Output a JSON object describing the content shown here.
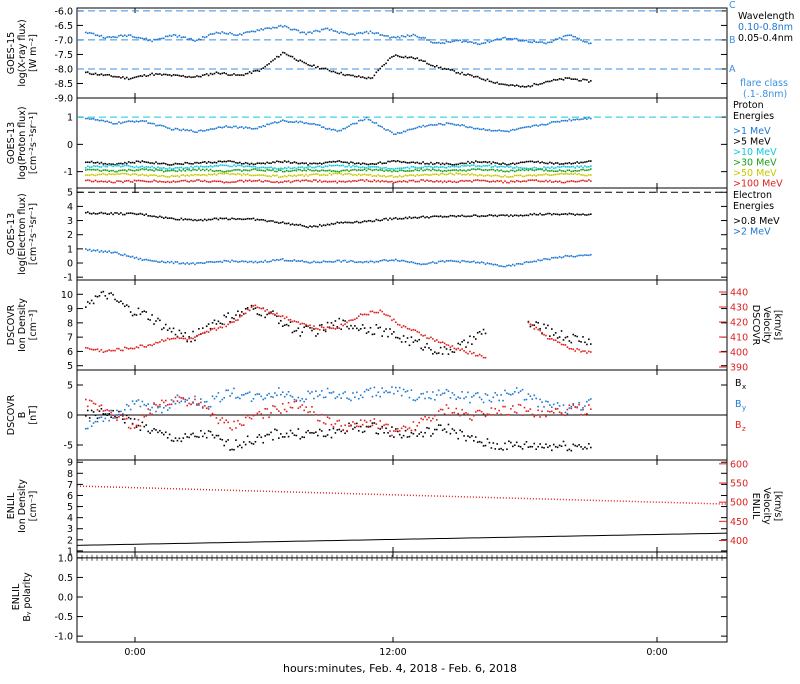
{
  "footer": {
    "xaxis_label": "hours:minutes, Feb.  4, 2018 - Feb.  6, 2018"
  },
  "xticks": [
    "0:00",
    "12:00",
    "0:00"
  ],
  "colors": {
    "black": "#000000",
    "blue": "#1e78d2",
    "cyan": "#10c8e0",
    "green": "#18a018",
    "orange": "#e89a10",
    "yellow": "#c8c800",
    "red": "#e02020",
    "grid_blue": "#3a8fe0"
  },
  "chart_data": [
    {
      "id": "xray",
      "type": "line",
      "ylabel": [
        "GOES-15",
        "log(X-ray flux)",
        "[W m⁻²]"
      ],
      "ylim": [
        -9.0,
        -5.9
      ],
      "yticks": [
        "-6.0",
        "-6.5",
        "-7.0",
        "-7.5",
        "-8.0",
        "-8.5",
        "-9.0"
      ],
      "ytick_values": [
        -6.0,
        -6.5,
        -7.0,
        -7.5,
        -8.0,
        -8.5,
        -9.0
      ],
      "legend_title": "Wavelength",
      "series": [
        {
          "name": "0.05-0.4nm",
          "color": "#000000",
          "values": [
            -8.1,
            -8.2,
            -8.3,
            -8.15,
            -8.2,
            -8.25,
            -8.1,
            -8.2,
            -8.0,
            -7.4,
            -7.8,
            -8.0,
            -8.2,
            -8.3,
            -7.5,
            -7.6,
            -7.9,
            -8.1,
            -8.3,
            -8.5,
            -8.6,
            -8.4,
            -8.3,
            -8.4
          ]
        },
        {
          "name": "0.10-0.8nm",
          "color": "#1e78d2",
          "values": [
            -6.7,
            -6.9,
            -6.8,
            -7.0,
            -6.8,
            -7.0,
            -6.7,
            -6.8,
            -6.6,
            -6.5,
            -6.75,
            -6.6,
            -6.8,
            -6.7,
            -6.9,
            -6.8,
            -7.1,
            -7.0,
            -7.1,
            -6.9,
            -7.0,
            -7.1,
            -6.8,
            -7.1
          ]
        }
      ],
      "flare_class": {
        "title": "flare class",
        "subtitle": "(.1-.8nm)",
        "levels": [
          {
            "name": "C",
            "value": -6.0
          },
          {
            "name": "B",
            "value": -7.0
          },
          {
            "name": "A",
            "value": -8.0
          }
        ]
      }
    },
    {
      "id": "proton",
      "type": "scatter",
      "ylabel": [
        "GOES-13",
        "log(Proton flux)",
        "[cm⁻²s⁻¹sr⁻¹]"
      ],
      "ylim": [
        -1.6,
        1.7
      ],
      "yticks": [
        "1",
        "0",
        "-1"
      ],
      "ytick_values": [
        1,
        0,
        -1
      ],
      "legend_title": "Proton Energies",
      "threshold": 1.0,
      "series": [
        {
          "name": ">1 MeV",
          "color": "#1e78d2",
          "values": [
            1.0,
            0.8,
            0.9,
            0.6,
            0.5,
            0.7,
            0.6,
            0.9,
            0.8,
            0.5,
            1.0,
            0.4,
            0.7,
            0.8,
            0.6,
            0.5,
            0.7,
            0.9,
            1.0
          ]
        },
        {
          "name": ">5 MeV",
          "color": "#000000",
          "values": [
            -0.6,
            -0.7,
            -0.6,
            -0.7,
            -0.65,
            -0.6,
            -0.7,
            -0.6,
            -0.7,
            -0.6,
            -0.7,
            -0.6,
            -0.65,
            -0.7,
            -0.6,
            -0.7,
            -0.6,
            -0.7,
            -0.6
          ]
        },
        {
          "name": ">10 MeV",
          "color": "#10c8e0",
          "values": [
            -0.8,
            -0.75,
            -0.8,
            -0.85,
            -0.8,
            -0.75,
            -0.8,
            -0.85,
            -0.8,
            -0.75,
            -0.8,
            -0.85,
            -0.8,
            -0.8,
            -0.75,
            -0.8,
            -0.85,
            -0.8,
            -0.8
          ]
        },
        {
          "name": ">30 MeV",
          "color": "#18a018",
          "values": [
            -0.9,
            -0.95,
            -0.9,
            -0.95,
            -0.9,
            -0.95,
            -0.9,
            -0.95,
            -0.9,
            -0.95,
            -0.9,
            -0.95,
            -0.9,
            -0.95,
            -0.9,
            -0.95,
            -0.9,
            -0.95,
            -0.9
          ]
        },
        {
          "name": ">50 MeV",
          "color": "#c8c800",
          "values": [
            -1.1,
            -1.05,
            -1.1,
            -1.15,
            -1.1,
            -1.05,
            -1.1,
            -1.15,
            -1.1,
            -1.05,
            -1.1,
            -1.15,
            -1.1,
            -1.05,
            -1.1,
            -1.15,
            -1.1,
            -1.05,
            -1.1
          ]
        },
        {
          "name": ">100 MeV",
          "color": "#e02020",
          "values": [
            -1.3,
            -1.35,
            -1.3,
            -1.35,
            -1.3,
            -1.35,
            -1.3,
            -1.35,
            -1.3,
            -1.35,
            -1.3,
            -1.35,
            -1.3,
            -1.35,
            -1.3,
            -1.35,
            -1.3,
            -1.35,
            -1.3
          ]
        }
      ]
    },
    {
      "id": "electron",
      "type": "scatter",
      "ylabel": [
        "GOES-13",
        "log(Electron flux)",
        "[cm⁻²s⁻¹sr⁻¹]"
      ],
      "ylim": [
        -1.2,
        5.3
      ],
      "yticks": [
        "5",
        "4",
        "3",
        "2",
        "1",
        "0",
        "-1"
      ],
      "ytick_values": [
        5,
        4,
        3,
        2,
        1,
        0,
        -1
      ],
      "legend_title": "Electron Energies",
      "threshold": 5.0,
      "series": [
        {
          "name": ">0.8 MeV",
          "color": "#000000",
          "values": [
            3.6,
            3.55,
            3.5,
            3.2,
            3.1,
            3.2,
            3.15,
            2.9,
            2.6,
            2.9,
            3.0,
            3.2,
            3.3,
            3.35,
            3.4,
            3.4,
            3.5,
            3.5,
            3.5
          ]
        },
        {
          "name": ">2 MeV",
          "color": "#1e78d2",
          "values": [
            1.0,
            0.8,
            0.3,
            0.1,
            0.0,
            0.2,
            0.1,
            0.3,
            0.1,
            0.2,
            0.1,
            0.3,
            0.0,
            0.2,
            0.1,
            -0.2,
            0.2,
            0.5,
            0.6
          ]
        }
      ]
    },
    {
      "id": "dscovr_plasma",
      "type": "scatter",
      "ylabel": [
        "DSCOVR",
        "Ion Density",
        "[cm⁻³]"
      ],
      "right_label": [
        "DSCOVR",
        "Velocity",
        "[km/s]"
      ],
      "ylim": [
        4.7,
        11
      ],
      "yticks": [
        "10",
        "9",
        "8",
        "7",
        "6",
        "5"
      ],
      "ytick_values": [
        10,
        9,
        8,
        7,
        6,
        5
      ],
      "ylim_right": [
        388,
        448
      ],
      "yticks_right": [
        "440",
        "430",
        "420",
        "410",
        "400",
        "390"
      ],
      "ytick_right_values": [
        440,
        430,
        420,
        410,
        400,
        390
      ],
      "series": [
        {
          "name": "density",
          "axis": "left",
          "color": "#000000",
          "values": [
            9.5,
            10.0,
            9.0,
            8.5,
            7.5,
            7.0,
            8.0,
            8.5,
            9.0,
            8.5,
            7.5,
            7.5,
            8.0,
            7.8,
            7.5,
            7.0,
            6.5,
            6.0,
            6.5,
            7.5,
            null,
            8.0,
            7.5,
            7.0,
            6.8
          ]
        },
        {
          "name": "velocity",
          "axis": "right",
          "color": "#e02020",
          "values": [
            403,
            401,
            403,
            405,
            410,
            409,
            415,
            420,
            432,
            426,
            421,
            416,
            417,
            425,
            428,
            418,
            412,
            406,
            401,
            397,
            null,
            420,
            410,
            403,
            400
          ]
        }
      ]
    },
    {
      "id": "dscovr_b",
      "type": "scatter",
      "ylabel": [
        "DSCOVR",
        "B",
        "[nT]"
      ],
      "ylim": [
        -7.5,
        7.5
      ],
      "yticks": [
        "5",
        "0",
        "-5"
      ],
      "ytick_values": [
        5,
        0,
        -5
      ],
      "legend": [
        "Bx",
        "By",
        "Bz"
      ],
      "series": [
        {
          "name": "Bx",
          "color": "#000000",
          "values": [
            0,
            0.5,
            -1,
            -3,
            -4,
            -3,
            -5,
            -4,
            -3,
            -3,
            -3,
            -2,
            -2,
            -3,
            -3,
            -2,
            -4,
            -5,
            -5,
            -5,
            -5,
            -5
          ]
        },
        {
          "name": "By",
          "color": "#1e78d2",
          "values": [
            -2,
            0,
            2,
            1,
            3,
            2,
            4,
            3,
            4,
            3,
            4,
            3,
            4,
            4,
            3,
            4,
            3,
            3,
            4,
            2,
            1,
            2
          ]
        },
        {
          "name": "Bz",
          "color": "#e02020",
          "values": [
            2,
            1,
            -2,
            2,
            3,
            1,
            -2,
            0,
            1,
            2,
            -1,
            -2,
            -1,
            -3,
            -1,
            1,
            0,
            1,
            1,
            0,
            1,
            1
          ]
        }
      ]
    },
    {
      "id": "enlil_plasma",
      "type": "line",
      "ylabel": [
        "ENLIL",
        "Ion Density",
        "[cm⁻³]"
      ],
      "right_label": [
        "ENLIL",
        "Velocity",
        "[km/s]"
      ],
      "ylim": [
        0.9,
        9.2
      ],
      "yticks": [
        "9",
        "8",
        "7",
        "6",
        "5",
        "4",
        "3",
        "2",
        "1"
      ],
      "ytick_values": [
        9,
        8,
        7,
        6,
        5,
        4,
        3,
        2,
        1
      ],
      "ylim_right": [
        370,
        610
      ],
      "yticks_right": [
        "600",
        "550",
        "500",
        "450",
        "400"
      ],
      "ytick_right_values": [
        600,
        550,
        500,
        450,
        400
      ],
      "series": [
        {
          "name": "density",
          "axis": "left",
          "color": "#000000",
          "values": [
            1.5,
            2.6
          ]
        },
        {
          "name": "velocity",
          "axis": "right",
          "color": "#e02020",
          "values": [
            542,
            495
          ]
        }
      ]
    },
    {
      "id": "enlil_polarity",
      "type": "line",
      "ylabel": [
        "ENLIL",
        "Bᵧ polarity"
      ],
      "ylim": [
        -1.15,
        1.15
      ],
      "yticks": [
        "1.0",
        "0.5",
        "0.0",
        "-0.5",
        "-1.0"
      ],
      "ytick_values": [
        1.0,
        0.5,
        0.0,
        -0.5,
        -1.0
      ],
      "series": [
        {
          "name": "polarity",
          "color": "#000000",
          "values": [
            1.0,
            1.0
          ]
        }
      ]
    }
  ]
}
